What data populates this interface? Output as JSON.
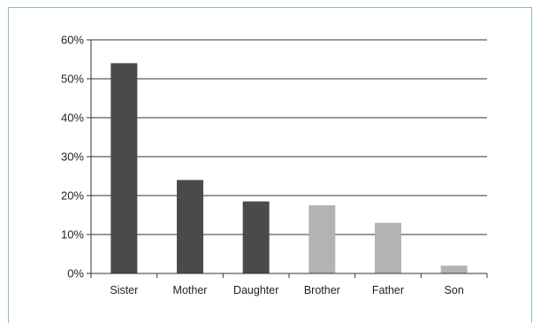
{
  "chart_data": {
    "type": "bar",
    "title": "",
    "xlabel": "",
    "ylabel": "",
    "categories": [
      "Sister",
      "Mother",
      "Daughter",
      "Brother",
      "Father",
      "Son"
    ],
    "values": [
      54,
      24,
      18.5,
      17.5,
      13,
      2
    ],
    "bar_colors": [
      "#4a4a4a",
      "#4a4a4a",
      "#4a4a4a",
      "#b3b3b3",
      "#b3b3b3",
      "#b3b3b3"
    ],
    "ylim": [
      0,
      60
    ],
    "yticks": [
      0,
      10,
      20,
      30,
      40,
      50,
      60
    ],
    "ytick_labels": [
      "0%",
      "10%",
      "20%",
      "30%",
      "40%",
      "50%",
      "60%"
    ],
    "grid": true,
    "legend": "none"
  },
  "colors": {
    "frame_border": "#8fbdb4",
    "gridline": "#333333",
    "axis": "#333333"
  }
}
